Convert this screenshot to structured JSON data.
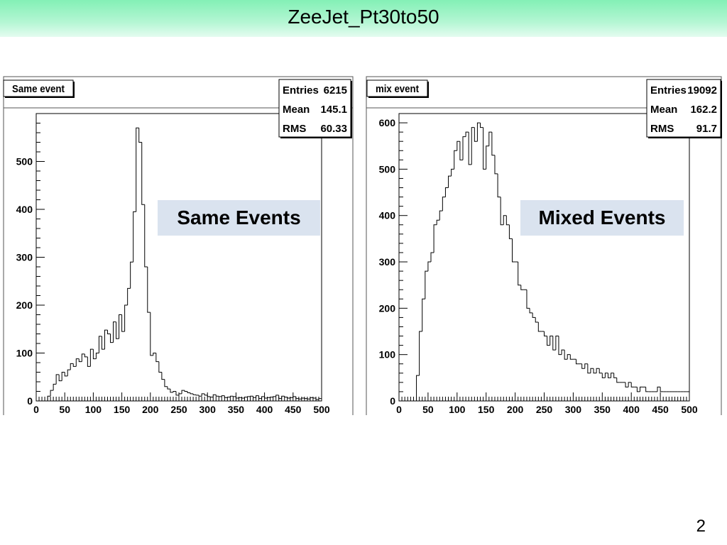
{
  "slide": {
    "title": "ZeeJet_Pt30to50",
    "page_number": "2",
    "overlay_left": "Same Events",
    "overlay_right": "Mixed Events"
  },
  "chart_data": [
    {
      "type": "histogram",
      "title": "Same event",
      "stats": [
        [
          "Entries",
          "6215"
        ],
        [
          "Mean",
          "145.1"
        ],
        [
          "RMS",
          "60.33"
        ]
      ],
      "xlim": [
        0,
        500
      ],
      "ylim": [
        0,
        600
      ],
      "xticks": [
        0,
        50,
        100,
        150,
        200,
        250,
        300,
        350,
        400,
        450,
        500
      ],
      "yticks": [
        0,
        100,
        200,
        300,
        400,
        500
      ],
      "bin_width": 5,
      "values": [
        0,
        0,
        0,
        0,
        10,
        22,
        35,
        55,
        42,
        60,
        52,
        65,
        78,
        72,
        88,
        82,
        98,
        92,
        72,
        108,
        88,
        100,
        135,
        108,
        148,
        140,
        122,
        165,
        130,
        180,
        145,
        200,
        235,
        290,
        395,
        570,
        540,
        410,
        280,
        185,
        95,
        100,
        82,
        60,
        45,
        30,
        25,
        18,
        20,
        12,
        15,
        22,
        20,
        17,
        15,
        13,
        12,
        10,
        15,
        12,
        9,
        8,
        13,
        10,
        9,
        11,
        7,
        8,
        10,
        9,
        6,
        7,
        6,
        8,
        9,
        10,
        7,
        11,
        5,
        9,
        6,
        7,
        8,
        9,
        12,
        5,
        10,
        8,
        6,
        7,
        9,
        5,
        4,
        6,
        5,
        4,
        7,
        6,
        3,
        5
      ]
    },
    {
      "type": "histogram",
      "title": "mix event",
      "stats": [
        [
          "Entries",
          "19092"
        ],
        [
          "Mean",
          "162.2"
        ],
        [
          "RMS",
          "91.7"
        ]
      ],
      "xlim": [
        0,
        500
      ],
      "ylim": [
        0,
        600
      ],
      "xticks": [
        0,
        50,
        100,
        150,
        200,
        250,
        300,
        350,
        400,
        450,
        500
      ],
      "yticks": [
        0,
        100,
        200,
        300,
        400,
        500,
        600
      ],
      "bin_width": 5,
      "values": [
        0,
        0,
        0,
        0,
        0,
        0,
        55,
        150,
        220,
        280,
        300,
        320,
        380,
        390,
        410,
        440,
        460,
        485,
        500,
        540,
        560,
        520,
        570,
        580,
        510,
        590,
        560,
        600,
        590,
        500,
        550,
        580,
        530,
        490,
        440,
        380,
        400,
        380,
        350,
        300,
        300,
        250,
        240,
        240,
        200,
        190,
        180,
        170,
        150,
        150,
        140,
        120,
        140,
        110,
        140,
        100,
        110,
        90,
        100,
        90,
        90,
        80,
        80,
        70,
        80,
        60,
        70,
        60,
        70,
        60,
        50,
        60,
        50,
        60,
        50,
        40,
        40,
        40,
        30,
        40,
        30,
        30,
        20,
        30,
        30,
        20,
        20,
        20,
        20,
        30,
        20,
        20,
        20,
        20,
        20,
        20,
        20,
        20,
        20,
        20
      ]
    }
  ]
}
